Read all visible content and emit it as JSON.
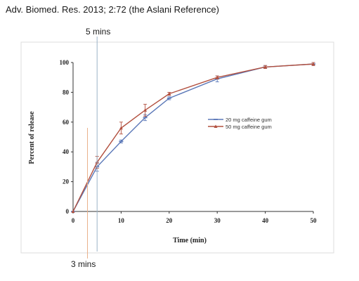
{
  "citation": "Adv. Biomed. Res. 2013; 2:72 (the Aslani Reference)",
  "annotations": {
    "top_label": "5 mins",
    "bottom_label": "3 mins",
    "top_line_x": 5,
    "bottom_line_x": 3,
    "top_line_color": "#9cb4c8",
    "bottom_line_color": "#e9b08a"
  },
  "chart_data": {
    "type": "line",
    "xlabel": "Time (min)",
    "ylabel": "Percent of release",
    "xlim": [
      0,
      50
    ],
    "ylim": [
      0,
      100
    ],
    "xticks": [
      0,
      10,
      20,
      30,
      40,
      50
    ],
    "yticks": [
      0,
      20,
      40,
      60,
      80,
      100
    ],
    "grid": false,
    "legend_position": "center-right",
    "x": [
      0,
      5,
      10,
      15,
      20,
      30,
      40,
      50
    ],
    "series": [
      {
        "name": "20 mg caffeine gum",
        "color": "#5b78b8",
        "marker": "dash",
        "values": [
          0,
          30,
          47,
          63,
          76,
          89,
          97,
          99
        ],
        "errors": [
          0,
          3,
          1,
          2,
          1,
          2,
          1,
          1
        ]
      },
      {
        "name": "50 mg caffeine gum",
        "color": "#b2503f",
        "marker": "triangle",
        "values": [
          0,
          33,
          56,
          68,
          79,
          90,
          97,
          99
        ],
        "errors": [
          0,
          4,
          4,
          4,
          1,
          1,
          1,
          1
        ]
      }
    ]
  }
}
